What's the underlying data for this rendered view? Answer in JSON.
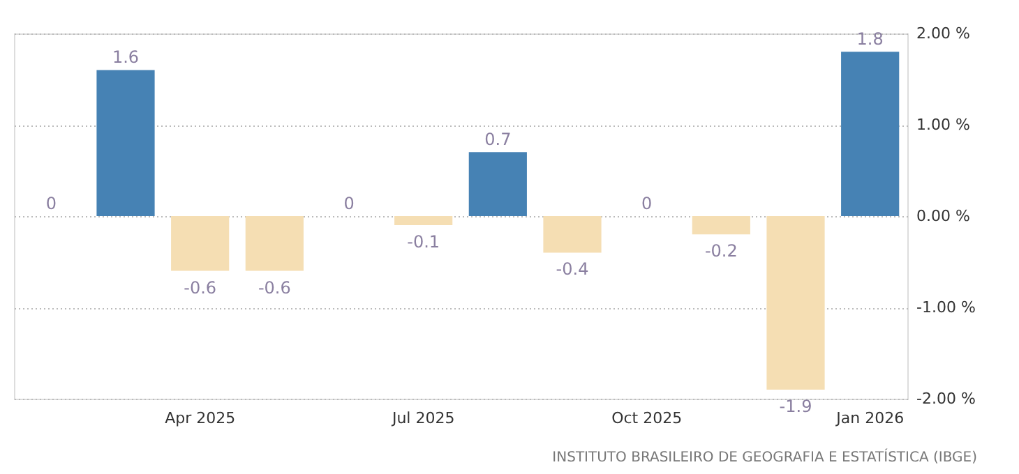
{
  "chart_data": {
    "type": "bar",
    "categories": [
      null,
      null,
      "Apr 2025",
      null,
      null,
      "Jul 2025",
      null,
      null,
      "Oct 2025",
      null,
      null,
      "Jan 2026"
    ],
    "values": [
      0,
      1.6,
      -0.6,
      -0.6,
      0,
      -0.1,
      0.7,
      -0.4,
      0,
      -0.2,
      -1.9,
      1.8
    ],
    "colors": [
      "#f5deb3",
      "#4682b4",
      "#f5deb3",
      "#f5deb3",
      "#f5deb3",
      "#f5deb3",
      "#4682b4",
      "#f5deb3",
      "#f5deb3",
      "#f5deb3",
      "#f5deb3",
      "#4682b4"
    ],
    "data_labels": true,
    "ylim": [
      -2,
      2
    ],
    "yticks": [
      {
        "value": -2,
        "label": "-2.00 %"
      },
      {
        "value": -1,
        "label": "-1.00 %"
      },
      {
        "value": 0,
        "label": "0.00 %"
      },
      {
        "value": 1,
        "label": "1.00 %"
      },
      {
        "value": 2,
        "label": "2.00 %"
      }
    ],
    "grid": "y",
    "annotations": [
      "INSTITUTO BRASILEIRO DE GEOGRAFIA E ESTATÍSTICA (IBGE)"
    ]
  }
}
